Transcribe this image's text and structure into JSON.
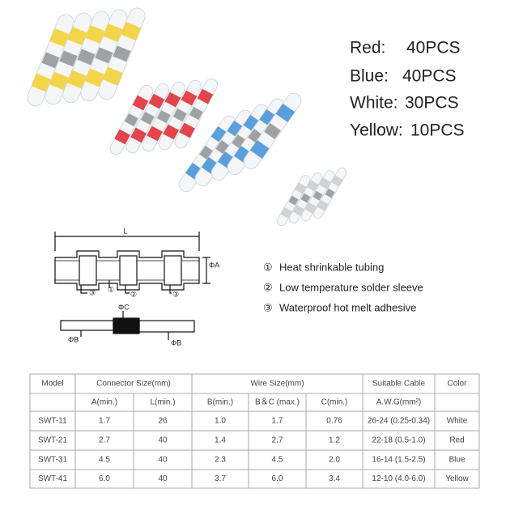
{
  "quantities": [
    {
      "label": "Red:",
      "count": "40PCS"
    },
    {
      "label": "Blue:",
      "count": "40PCS"
    },
    {
      "label": "White:",
      "count": "30PCS"
    },
    {
      "label": "Yellow:",
      "count": "10PCS"
    }
  ],
  "diagram": {
    "length_label": "L",
    "dia_a": "ΦA",
    "dia_c": "ΦC",
    "dia_b": [
      "ΦB",
      "ΦB"
    ],
    "callouts": [
      "③",
      "①",
      "②",
      "③"
    ]
  },
  "legend": [
    {
      "marker": "①",
      "text": "Heat shrinkable tubing"
    },
    {
      "marker": "②",
      "text": "Low temperature solder sleeve"
    },
    {
      "marker": "③",
      "text": "Waterproof hot melt adhesive"
    }
  ],
  "table": {
    "header": [
      "Model",
      "Connector Size(mm)",
      "Wire Size(mm)",
      "Suitable Cable",
      "Color"
    ],
    "subheader": [
      "A(min.)",
      "L(min.)",
      "B(min.)",
      "B＆C (max.)",
      "C(min.)",
      "A.W.G(mm²)"
    ],
    "rows": [
      [
        "SWT-11",
        "1.7",
        "26",
        "1.0",
        "1.7",
        "0.76",
        "26-24 (0.25-0.34)",
        "White"
      ],
      [
        "SWT-21",
        "2.7",
        "40",
        "1.4",
        "2.7",
        "1.2",
        "22-18 (0.5-1.0)",
        "Red"
      ],
      [
        "SWT-31",
        "4.5",
        "40",
        "2.3",
        "4.5",
        "2.0",
        "16-14 (1.5-2.5)",
        "Blue"
      ],
      [
        "SWT-41",
        "6.0",
        "40",
        "3.7",
        "6.0",
        "3.4",
        "12-10 (4.0-6.0)",
        "Yellow"
      ]
    ]
  }
}
